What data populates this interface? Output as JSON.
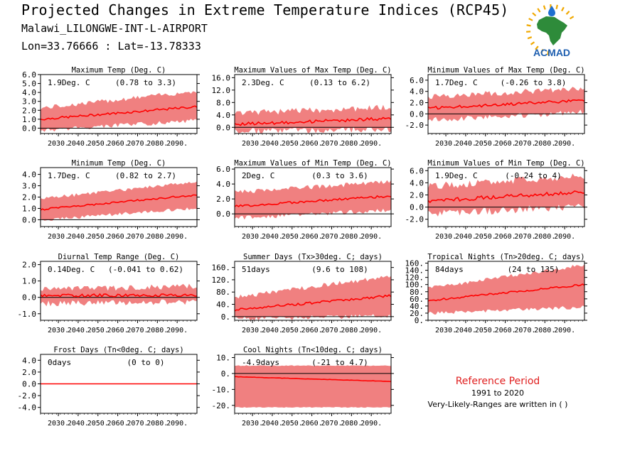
{
  "header": {
    "title": "Projected Changes in Extreme Temperature Indices (RCP45)",
    "station": "Malawi_LILONGWE-INT-L-AIRPORT",
    "coords": "Lon=33.76666 : Lat=-13.78333"
  },
  "logo": {
    "name": "ACMAD",
    "icon": "africa-map-logo",
    "colors": {
      "africa": "#2e8b3a",
      "drop": "#1e6fd0",
      "rays": "#f0a800",
      "text": "#1e5fb0"
    }
  },
  "reference": {
    "title": "Reference Period",
    "years": "1991 to 2020",
    "note": "Very-Likely-Ranges are written in ( )"
  },
  "colors": {
    "band": "#f08080",
    "line": "#ff0000",
    "zero": "#000000"
  },
  "chart_data": [
    {
      "type": "area",
      "title": "Maximum Temp (Deg. C)",
      "value_text": "1.9Deg. C",
      "range_text": "(0.78 to 3.3)",
      "xlim": [
        2021,
        2100
      ],
      "x_ticks": [
        "2030.",
        "2040.",
        "2050.",
        "2060.",
        "2070.",
        "2080.",
        "2090."
      ],
      "ylim": [
        -0.6,
        6.0
      ],
      "y_ticks": [
        "0.0",
        "1.0",
        "2.0",
        "3.0",
        "4.0",
        "5.0",
        "6.0"
      ],
      "trend_start": 1.0,
      "trend_end": 2.4,
      "band_low_start": 0.0,
      "band_low_end": 1.1,
      "band_high_start": 2.0,
      "band_high_end": 3.9,
      "spike": 0.5
    },
    {
      "type": "area",
      "title": "Maximum Values of Max Temp (Deg. C)",
      "value_text": "2.3Deg. C",
      "range_text": "(0.13 to 6.2)",
      "xlim": [
        2021,
        2100
      ],
      "x_ticks": [
        "2030.",
        "2040.",
        "2050.",
        "2060.",
        "2070.",
        "2080.",
        "2090."
      ],
      "ylim": [
        -2.0,
        17.0
      ],
      "y_ticks": [
        "0.0",
        "4.0",
        "8.0",
        "12.0",
        "16.0"
      ],
      "trend_start": 1.0,
      "trend_end": 2.8,
      "band_low_start": -0.3,
      "band_low_end": 0.4,
      "band_high_start": 3.5,
      "band_high_end": 5.5,
      "spike": 2.0
    },
    {
      "type": "area",
      "title": "Minimum Values of Max Temp (Deg. C)",
      "value_text": "1.7Deg. C",
      "range_text": "(-0.26 to 3.8)",
      "xlim": [
        2021,
        2100
      ],
      "x_ticks": [
        "2030.",
        "2040.",
        "2050.",
        "2060.",
        "2070.",
        "2080.",
        "2090."
      ],
      "ylim": [
        -3.5,
        7.0
      ],
      "y_ticks": [
        "-2.0",
        "0.0",
        "2.0",
        "4.0",
        "6.0"
      ],
      "trend_start": 1.0,
      "trend_end": 2.4,
      "band_low_start": -0.6,
      "band_low_end": 0.8,
      "band_high_start": 2.6,
      "band_high_end": 4.0,
      "spike": 1.0
    },
    {
      "type": "area",
      "title": "Minimum Temp (Deg. C)",
      "value_text": "1.7Deg. C",
      "range_text": "(0.82 to 2.7)",
      "xlim": [
        2021,
        2100
      ],
      "x_ticks": [
        "2030.",
        "2040.",
        "2050.",
        "2060.",
        "2070.",
        "2080.",
        "2090."
      ],
      "ylim": [
        -0.6,
        4.6
      ],
      "y_ticks": [
        "0.0",
        "1.0",
        "2.0",
        "3.0",
        "4.0"
      ],
      "trend_start": 0.9,
      "trend_end": 2.2,
      "band_low_start": 0.1,
      "band_low_end": 1.2,
      "band_high_start": 1.7,
      "band_high_end": 3.2,
      "spike": 0.3
    },
    {
      "type": "area",
      "title": "Maximum Values of Min Temp (Deg. C)",
      "value_text": "2Deg. C",
      "range_text": "(0.3 to 3.6)",
      "xlim": [
        2021,
        2100
      ],
      "x_ticks": [
        "2030.",
        "2040.",
        "2050.",
        "2060.",
        "2070.",
        "2080.",
        "2090."
      ],
      "ylim": [
        -1.7,
        6.2
      ],
      "y_ticks": [
        "0.0",
        "2.0",
        "4.0",
        "6.0"
      ],
      "trend_start": 1.0,
      "trend_end": 2.4,
      "band_low_start": -0.3,
      "band_low_end": 0.8,
      "band_high_start": 2.6,
      "band_high_end": 4.0,
      "spike": 0.6
    },
    {
      "type": "area",
      "title": "Minimum Values of Min Temp (Deg. C)",
      "value_text": "1.9Deg. C",
      "range_text": "(-0.24 to 4)",
      "xlim": [
        2021,
        2100
      ],
      "x_ticks": [
        "2030.",
        "2040.",
        "2050.",
        "2060.",
        "2070.",
        "2080.",
        "2090."
      ],
      "ylim": [
        -3.2,
        6.5
      ],
      "y_ticks": [
        "-2.0",
        "0.0",
        "2.0",
        "4.0",
        "6.0"
      ],
      "trend_start": 1.0,
      "trend_end": 2.5,
      "band_low_start": -0.5,
      "band_low_end": 0.7,
      "band_high_start": 2.8,
      "band_high_end": 4.5,
      "spike": 1.2
    },
    {
      "type": "area",
      "title": "Diurnal Temp Range (Deg. C)",
      "value_text": "0.14Deg. C",
      "range_text": "(-0.041 to 0.62)",
      "xlim": [
        2021,
        2100
      ],
      "x_ticks": [
        "2030.",
        "2040.",
        "2050.",
        "2060.",
        "2070.",
        "2080.",
        "2090."
      ],
      "ylim": [
        -1.4,
        2.2
      ],
      "y_ticks": [
        "-1.0",
        "0.0",
        "1.0",
        "2.0"
      ],
      "trend_start": 0.1,
      "trend_end": 0.15,
      "band_low_start": -0.2,
      "band_low_end": -0.1,
      "band_high_start": 0.3,
      "band_high_end": 0.5,
      "spike": 0.35
    },
    {
      "type": "area",
      "title": "Summer Days (Tx>30deg. C; days)",
      "value_text": "51days",
      "range_text": "(9.6 to 108)",
      "xlim": [
        2021,
        2100
      ],
      "x_ticks": [
        "2030.",
        "2040.",
        "2050.",
        "2060.",
        "2070.",
        "2080.",
        "2090."
      ],
      "ylim": [
        -12,
        180
      ],
      "y_ticks": [
        "0.",
        "40.",
        "80.",
        "120.",
        "160."
      ],
      "trend_start": 22,
      "trend_end": 68,
      "band_low_start": 0,
      "band_low_end": 10,
      "band_high_start": 55,
      "band_high_end": 125,
      "spike": 15
    },
    {
      "type": "area",
      "title": "Tropical Nights (Tn>20deg. C; days)",
      "value_text": "84days",
      "range_text": "(24 to 135)",
      "xlim": [
        2021,
        2100
      ],
      "x_ticks": [
        "2030.",
        "2040.",
        "2050.",
        "2060.",
        "2070.",
        "2080.",
        "2090."
      ],
      "ylim": [
        0,
        165
      ],
      "y_ticks": [
        "0.",
        "20.",
        "40.",
        "60.",
        "80.",
        "100.",
        "120.",
        "140.",
        "160."
      ],
      "trend_start": 55,
      "trend_end": 100,
      "band_low_start": 25,
      "band_low_end": 42,
      "band_high_start": 85,
      "band_high_end": 150,
      "spike": 10
    },
    {
      "type": "area",
      "title": "Frost Days (Tn<0deg. C; days)",
      "value_text": "0days",
      "range_text": "(0 to 0)",
      "xlim": [
        2021,
        2100
      ],
      "x_ticks": [
        "2030.",
        "2040.",
        "2050.",
        "2060.",
        "2070.",
        "2080.",
        "2090."
      ],
      "ylim": [
        -5.0,
        5.0
      ],
      "y_ticks": [
        "-4.0",
        "-2.0",
        "0.0",
        "2.0",
        "4.0"
      ],
      "trend_start": 0,
      "trend_end": 0,
      "band_low_start": 0,
      "band_low_end": 0,
      "band_high_start": 0,
      "band_high_end": 0,
      "spike": 0
    },
    {
      "type": "area",
      "title": "Cool Nights (Tn<10deg. C; days)",
      "value_text": "-4.9days",
      "range_text": "(-21 to 4.7)",
      "xlim": [
        2021,
        2100
      ],
      "x_ticks": [
        "2030.",
        "2040.",
        "2050.",
        "2060.",
        "2070.",
        "2080.",
        "2090."
      ],
      "ylim": [
        -25,
        12
      ],
      "y_ticks": [
        "-20.",
        "-10.",
        "0.",
        "10."
      ],
      "trend_start": -2,
      "trend_end": -5,
      "band_low_start": -21,
      "band_low_end": -21,
      "band_high_start": 4.7,
      "band_high_end": 4.7,
      "spike": 0.5
    }
  ]
}
